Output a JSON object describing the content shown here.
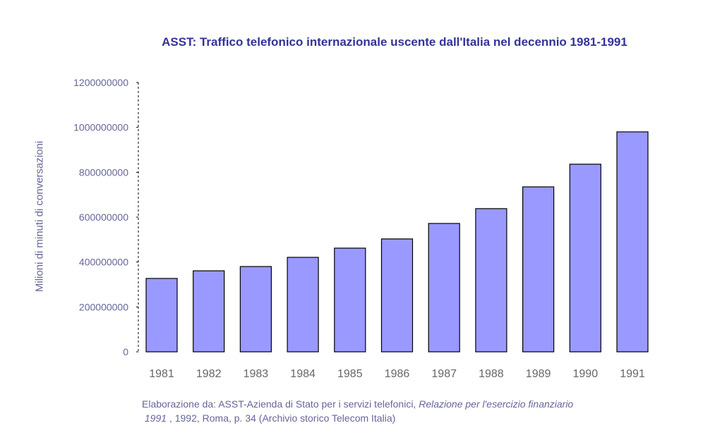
{
  "chart_data": {
    "type": "bar",
    "title": "ASST: Traffico telefonico internazionale uscente dall'Italia nel decennio 1981-1991",
    "xlabel": "",
    "ylabel": "Milioni di minuti di conversazioni",
    "categories": [
      "1981",
      "1982",
      "1983",
      "1984",
      "1985",
      "1986",
      "1987",
      "1988",
      "1989",
      "1990",
      "1991"
    ],
    "values": [
      327000000,
      361000000,
      380000000,
      421000000,
      462000000,
      503000000,
      572000000,
      638000000,
      735000000,
      836000000,
      980000000
    ],
    "ylim": [
      0,
      1200000000
    ],
    "yticks": [
      0,
      200000000,
      400000000,
      600000000,
      800000000,
      1000000000,
      1200000000
    ],
    "ytick_labels": [
      "0",
      "200000000",
      "400000000",
      "600000000",
      "800000000",
      "1000000000",
      "1200000000"
    ],
    "grid": false,
    "legend": "none",
    "colors": {
      "bar": "#9999ff",
      "bar_stroke": "#000000",
      "title": "#333399",
      "axis_text": "#666699"
    }
  },
  "source": {
    "prefix": "Elaborazione da: ASST-Azienda di Stato per i servizi telefonici, ",
    "italic1": "Relazione per l'esercizio finanziario",
    "italic2": "1991",
    "suffix": " , 1992, Roma, p. 34 (Archivio storico Telecom Italia)"
  }
}
